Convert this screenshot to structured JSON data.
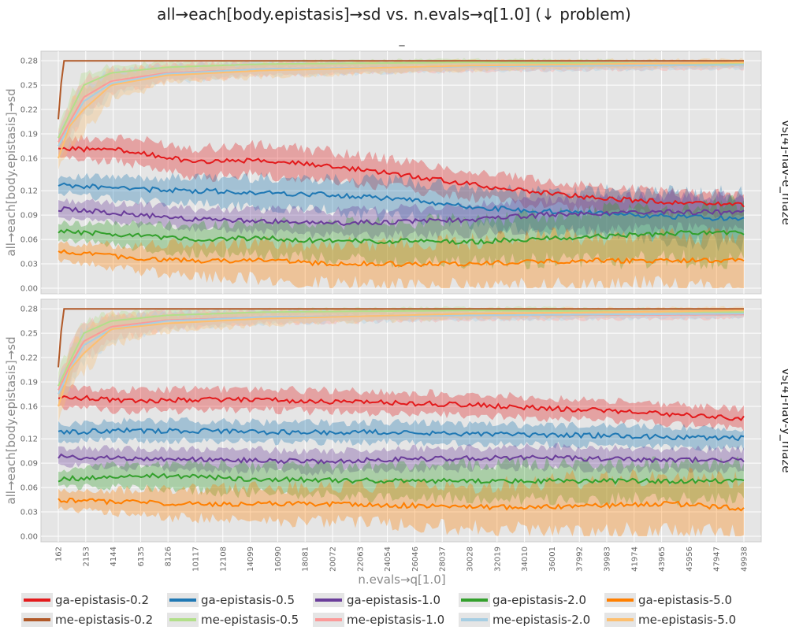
{
  "chart_data": {
    "type": "line",
    "title": "all→each[body.epistasis]→sd vs. n.evals→q[1.0] (↓ problem)",
    "subtitle": "_",
    "xlabel": "n.evals→q[1.0]",
    "ylabel": "all→each[body.epistasis]→sd",
    "x_ticks": [
      162,
      2153,
      4144,
      6135,
      8126,
      10117,
      12108,
      14099,
      16090,
      18081,
      20072,
      22063,
      24054,
      26046,
      28037,
      30028,
      32019,
      34010,
      36001,
      37992,
      39983,
      41974,
      43965,
      45956,
      47947,
      49938
    ],
    "xlim": [
      162,
      49938
    ],
    "y_ticks": [
      "0.00",
      "0.03",
      "0.06",
      "0.09",
      "0.12",
      "0.16",
      "0.19",
      "0.22",
      "0.25",
      "0.28"
    ],
    "ylim": [
      0,
      0.285
    ],
    "grid": true,
    "legend_position": "bottom",
    "facets": [
      {
        "label": "vs[4]-nav-e_maze",
        "series": [
          {
            "name": "ga-epistasis-0.2",
            "x": [
              162,
              5000,
              10000,
              15000,
              20000,
              25000,
              30000,
              35000,
              40000,
              45000,
              49938
            ],
            "median": [
              0.172,
              0.17,
              0.155,
              0.158,
              0.15,
              0.14,
              0.128,
              0.118,
              0.11,
              0.106,
              0.103
            ],
            "band": [
              0.012,
              0.015,
              0.018,
              0.018,
              0.018,
              0.017,
              0.016,
              0.015,
              0.014,
              0.014,
              0.013
            ]
          },
          {
            "name": "ga-epistasis-0.5",
            "x": [
              162,
              5000,
              10000,
              15000,
              20000,
              25000,
              30000,
              35000,
              40000,
              45000,
              49938
            ],
            "median": [
              0.128,
              0.122,
              0.12,
              0.118,
              0.115,
              0.11,
              0.1,
              0.095,
              0.092,
              0.088,
              0.085
            ],
            "band": [
              0.01,
              0.014,
              0.016,
              0.018,
              0.02,
              0.022,
              0.022,
              0.024,
              0.026,
              0.028,
              0.03
            ]
          },
          {
            "name": "ga-epistasis-1.0",
            "x": [
              162,
              5000,
              10000,
              15000,
              20000,
              25000,
              30000,
              35000,
              40000,
              45000,
              49938
            ],
            "median": [
              0.098,
              0.092,
              0.085,
              0.083,
              0.08,
              0.082,
              0.084,
              0.09,
              0.092,
              0.094,
              0.093
            ],
            "band": [
              0.01,
              0.012,
              0.013,
              0.014,
              0.015,
              0.016,
              0.017,
              0.018,
              0.019,
              0.02,
              0.02
            ]
          },
          {
            "name": "ga-epistasis-2.0",
            "x": [
              162,
              5000,
              10000,
              15000,
              20000,
              25000,
              30000,
              35000,
              40000,
              45000,
              49938
            ],
            "median": [
              0.07,
              0.066,
              0.06,
              0.062,
              0.058,
              0.058,
              0.057,
              0.061,
              0.064,
              0.068,
              0.068
            ],
            "band": [
              0.01,
              0.014,
              0.017,
              0.02,
              0.022,
              0.024,
              0.026,
              0.028,
              0.03,
              0.032,
              0.034
            ]
          },
          {
            "name": "ga-epistasis-5.0",
            "x": [
              162,
              5000,
              10000,
              15000,
              20000,
              25000,
              30000,
              35000,
              40000,
              45000,
              49938
            ],
            "median": [
              0.045,
              0.038,
              0.034,
              0.034,
              0.03,
              0.03,
              0.03,
              0.033,
              0.034,
              0.034,
              0.034
            ],
            "band": [
              0.01,
              0.015,
              0.02,
              0.022,
              0.024,
              0.026,
              0.028,
              0.03,
              0.03,
              0.03,
              0.03
            ]
          },
          {
            "name": "me-epistasis-0.2",
            "x": [
              162,
              500,
              1000,
              15000,
              30000,
              49938
            ],
            "median": [
              0.208,
              0.28,
              0.28,
              0.28,
              0.28,
              0.28
            ],
            "band": [
              0.0,
              0.0,
              0.0,
              0.0,
              0.0,
              0.0
            ]
          },
          {
            "name": "me-epistasis-0.5",
            "x": [
              162,
              1000,
              2000,
              4000,
              8000,
              15000,
              30000,
              49938
            ],
            "median": [
              0.185,
              0.215,
              0.25,
              0.265,
              0.272,
              0.276,
              0.278,
              0.276
            ],
            "band": [
              0.015,
              0.02,
              0.015,
              0.01,
              0.006,
              0.004,
              0.004,
              0.004
            ]
          },
          {
            "name": "me-epistasis-1.0",
            "x": [
              162,
              1000,
              2000,
              4000,
              8000,
              15000,
              30000,
              49938
            ],
            "median": [
              0.18,
              0.205,
              0.235,
              0.255,
              0.265,
              0.27,
              0.273,
              0.275
            ],
            "band": [
              0.015,
              0.02,
              0.02,
              0.015,
              0.01,
              0.008,
              0.006,
              0.005
            ]
          },
          {
            "name": "me-epistasis-2.0",
            "x": [
              162,
              1000,
              2000,
              4000,
              8000,
              15000,
              30000,
              49938
            ],
            "median": [
              0.175,
              0.2,
              0.23,
              0.252,
              0.264,
              0.27,
              0.273,
              0.275
            ],
            "band": [
              0.015,
              0.02,
              0.02,
              0.015,
              0.01,
              0.008,
              0.006,
              0.005
            ]
          },
          {
            "name": "me-epistasis-5.0",
            "x": [
              162,
              1000,
              2000,
              4000,
              8000,
              15000,
              30000,
              49938
            ],
            "median": [
              0.16,
              0.2,
              0.22,
              0.25,
              0.262,
              0.268,
              0.274,
              0.278
            ],
            "band": [
              0.015,
              0.025,
              0.025,
              0.018,
              0.01,
              0.008,
              0.006,
              0.004
            ]
          }
        ]
      },
      {
        "label": "vs[4]-nav-y_maze",
        "series": [
          {
            "name": "ga-epistasis-0.2",
            "x": [
              162,
              5000,
              10000,
              15000,
              20000,
              25000,
              30000,
              35000,
              40000,
              45000,
              49938
            ],
            "median": [
              0.172,
              0.167,
              0.168,
              0.168,
              0.166,
              0.164,
              0.162,
              0.158,
              0.155,
              0.15,
              0.145
            ],
            "band": [
              0.012,
              0.013,
              0.013,
              0.013,
              0.013,
              0.013,
              0.013,
              0.013,
              0.012,
              0.012,
              0.012
            ]
          },
          {
            "name": "ga-epistasis-0.5",
            "x": [
              162,
              5000,
              10000,
              15000,
              20000,
              25000,
              30000,
              35000,
              40000,
              45000,
              49938
            ],
            "median": [
              0.128,
              0.13,
              0.13,
              0.128,
              0.128,
              0.128,
              0.126,
              0.125,
              0.124,
              0.122,
              0.121
            ],
            "band": [
              0.01,
              0.012,
              0.012,
              0.012,
              0.012,
              0.012,
              0.012,
              0.012,
              0.012,
              0.012,
              0.012
            ]
          },
          {
            "name": "ga-epistasis-1.0",
            "x": [
              162,
              5000,
              10000,
              15000,
              20000,
              25000,
              30000,
              35000,
              40000,
              45000,
              49938
            ],
            "median": [
              0.098,
              0.096,
              0.095,
              0.093,
              0.092,
              0.095,
              0.096,
              0.097,
              0.095,
              0.094,
              0.094
            ],
            "band": [
              0.01,
              0.012,
              0.012,
              0.013,
              0.013,
              0.013,
              0.013,
              0.013,
              0.013,
              0.013,
              0.013
            ]
          },
          {
            "name": "ga-epistasis-2.0",
            "x": [
              162,
              5000,
              10000,
              15000,
              20000,
              25000,
              30000,
              35000,
              40000,
              45000,
              49938
            ],
            "median": [
              0.07,
              0.075,
              0.073,
              0.07,
              0.069,
              0.068,
              0.068,
              0.068,
              0.068,
              0.068,
              0.068
            ],
            "band": [
              0.01,
              0.014,
              0.016,
              0.018,
              0.019,
              0.02,
              0.021,
              0.022,
              0.022,
              0.022,
              0.022
            ]
          },
          {
            "name": "ga-epistasis-5.0",
            "x": [
              162,
              5000,
              10000,
              15000,
              20000,
              25000,
              30000,
              35000,
              40000,
              45000,
              49938
            ],
            "median": [
              0.045,
              0.042,
              0.04,
              0.04,
              0.04,
              0.038,
              0.036,
              0.036,
              0.038,
              0.04,
              0.034
            ],
            "band": [
              0.01,
              0.015,
              0.018,
              0.02,
              0.022,
              0.024,
              0.026,
              0.03,
              0.034,
              0.034,
              0.034
            ]
          },
          {
            "name": "me-epistasis-0.2",
            "x": [
              162,
              500,
              1000,
              15000,
              30000,
              49938
            ],
            "median": [
              0.208,
              0.28,
              0.28,
              0.28,
              0.28,
              0.28
            ],
            "band": [
              0.0,
              0.0,
              0.0,
              0.0,
              0.0,
              0.0
            ]
          },
          {
            "name": "me-epistasis-0.5",
            "x": [
              162,
              1000,
              2000,
              4000,
              8000,
              15000,
              30000,
              49938
            ],
            "median": [
              0.185,
              0.215,
              0.25,
              0.265,
              0.272,
              0.276,
              0.278,
              0.276
            ],
            "band": [
              0.015,
              0.02,
              0.015,
              0.01,
              0.006,
              0.004,
              0.004,
              0.004
            ]
          },
          {
            "name": "me-epistasis-1.0",
            "x": [
              162,
              1000,
              2000,
              4000,
              8000,
              15000,
              30000,
              49938
            ],
            "median": [
              0.18,
              0.21,
              0.24,
              0.258,
              0.266,
              0.27,
              0.272,
              0.273
            ],
            "band": [
              0.015,
              0.02,
              0.02,
              0.015,
              0.01,
              0.008,
              0.006,
              0.005
            ]
          },
          {
            "name": "me-epistasis-2.0",
            "x": [
              162,
              1000,
              2000,
              4000,
              8000,
              15000,
              30000,
              49938
            ],
            "median": [
              0.175,
              0.205,
              0.235,
              0.255,
              0.265,
              0.27,
              0.272,
              0.274
            ],
            "band": [
              0.015,
              0.02,
              0.02,
              0.015,
              0.01,
              0.008,
              0.006,
              0.005
            ]
          },
          {
            "name": "me-epistasis-5.0",
            "x": [
              162,
              1000,
              2000,
              4000,
              8000,
              15000,
              30000,
              49938
            ],
            "median": [
              0.16,
              0.205,
              0.225,
              0.255,
              0.262,
              0.268,
              0.274,
              0.278
            ],
            "band": [
              0.015,
              0.025,
              0.025,
              0.018,
              0.01,
              0.008,
              0.006,
              0.004
            ]
          }
        ]
      }
    ],
    "legend": [
      {
        "name": "ga-epistasis-0.2",
        "color": "#e31a1c"
      },
      {
        "name": "ga-epistasis-0.5",
        "color": "#1f78b4"
      },
      {
        "name": "ga-epistasis-1.0",
        "color": "#6a3d9a"
      },
      {
        "name": "ga-epistasis-2.0",
        "color": "#33a02c"
      },
      {
        "name": "ga-epistasis-5.0",
        "color": "#ff7f00"
      },
      {
        "name": "me-epistasis-0.2",
        "color": "#b15928"
      },
      {
        "name": "me-epistasis-0.5",
        "color": "#b2df8a"
      },
      {
        "name": "me-epistasis-1.0",
        "color": "#fb9a99"
      },
      {
        "name": "me-epistasis-2.0",
        "color": "#a6cee3"
      },
      {
        "name": "me-epistasis-5.0",
        "color": "#fdbf6f"
      }
    ]
  }
}
